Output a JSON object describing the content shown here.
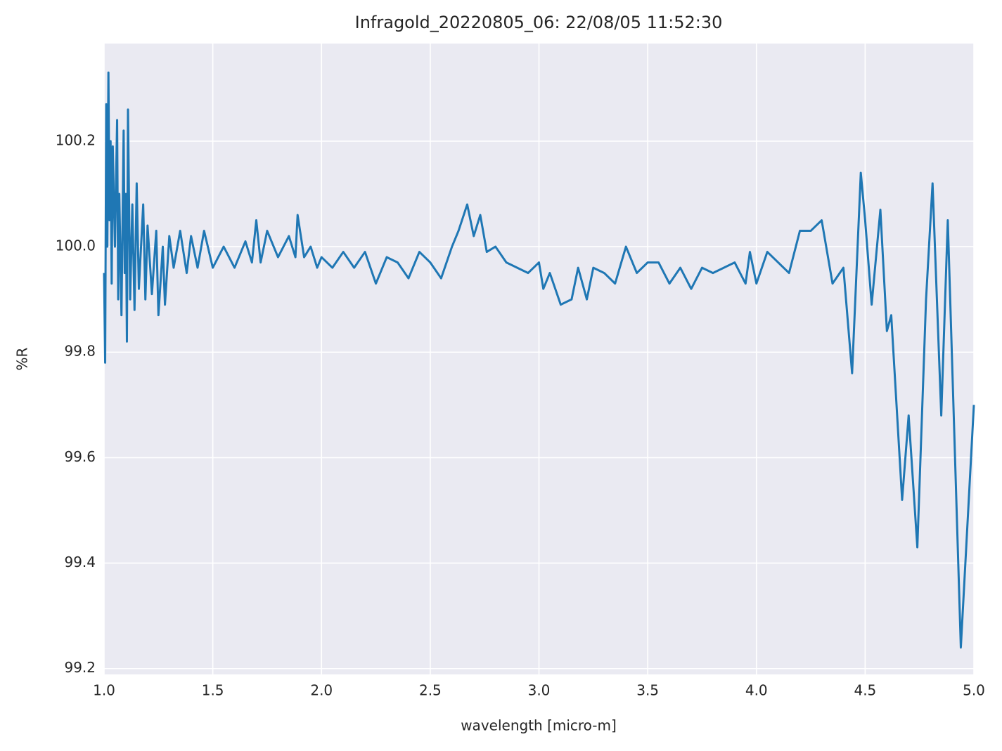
{
  "chart_data": {
    "type": "line",
    "title": "Infragold_20220805_06:  22/08/05 11:52:30",
    "x_label": "wavelength [micro-m]",
    "y_label": "%R",
    "xlim": [
      1.0,
      5.0
    ],
    "ylim": [
      99.189,
      100.385
    ],
    "xticks": [
      {
        "value": 1.0,
        "label": "1.0"
      },
      1.5,
      {
        "value": 2.0,
        "label": "2.0"
      },
      2.5,
      {
        "value": 3.0,
        "label": "3.0"
      },
      3.5,
      {
        "value": 4.0,
        "label": "4.0"
      },
      4.5,
      {
        "value": 5.0,
        "label": "5.0"
      }
    ],
    "yticks": [
      99.2,
      99.4,
      99.6,
      99.8,
      {
        "value": 100.0,
        "label": "100.0"
      },
      100.2
    ],
    "grid": true,
    "series": [
      {
        "color": "#1f77b4",
        "x": [
          1.0,
          1.005,
          1.01,
          1.015,
          1.02,
          1.025,
          1.03,
          1.035,
          1.04,
          1.05,
          1.06,
          1.065,
          1.07,
          1.08,
          1.09,
          1.095,
          1.1,
          1.105,
          1.11,
          1.12,
          1.13,
          1.14,
          1.15,
          1.16,
          1.18,
          1.19,
          1.2,
          1.22,
          1.24,
          1.25,
          1.27,
          1.28,
          1.3,
          1.32,
          1.35,
          1.38,
          1.4,
          1.43,
          1.46,
          1.5,
          1.55,
          1.6,
          1.65,
          1.68,
          1.7,
          1.72,
          1.75,
          1.8,
          1.85,
          1.88,
          1.89,
          1.92,
          1.95,
          1.98,
          2.0,
          2.05,
          2.1,
          2.15,
          2.2,
          2.25,
          2.3,
          2.35,
          2.4,
          2.45,
          2.5,
          2.55,
          2.6,
          2.63,
          2.67,
          2.7,
          2.73,
          2.76,
          2.8,
          2.85,
          2.9,
          2.95,
          3.0,
          3.02,
          3.05,
          3.1,
          3.15,
          3.18,
          3.22,
          3.25,
          3.3,
          3.35,
          3.4,
          3.45,
          3.5,
          3.55,
          3.6,
          3.65,
          3.7,
          3.75,
          3.8,
          3.85,
          3.9,
          3.95,
          3.97,
          4.0,
          4.05,
          4.1,
          4.15,
          4.2,
          4.25,
          4.3,
          4.35,
          4.4,
          4.44,
          4.48,
          4.5,
          4.53,
          4.57,
          4.6,
          4.62,
          4.67,
          4.7,
          4.74,
          4.78,
          4.81,
          4.85,
          4.88,
          4.94,
          5.0
        ],
        "values": [
          99.95,
          99.78,
          100.27,
          100.0,
          100.33,
          100.05,
          100.2,
          99.93,
          100.19,
          100.0,
          100.24,
          99.9,
          100.1,
          99.87,
          100.22,
          99.95,
          100.1,
          99.82,
          100.26,
          99.9,
          100.08,
          99.88,
          100.12,
          99.92,
          100.08,
          99.9,
          100.04,
          99.91,
          100.03,
          99.87,
          100.0,
          99.89,
          100.02,
          99.96,
          100.03,
          99.95,
          100.02,
          99.96,
          100.03,
          99.96,
          100.0,
          99.96,
          100.01,
          99.97,
          100.05,
          99.97,
          100.03,
          99.98,
          100.02,
          99.98,
          100.06,
          99.98,
          100.0,
          99.96,
          99.98,
          99.96,
          99.99,
          99.96,
          99.99,
          99.93,
          99.98,
          99.97,
          99.94,
          99.99,
          99.97,
          99.94,
          100.0,
          100.03,
          100.08,
          100.02,
          100.06,
          99.99,
          100.0,
          99.97,
          99.96,
          99.95,
          99.97,
          99.92,
          99.95,
          99.89,
          99.9,
          99.96,
          99.9,
          99.96,
          99.95,
          99.93,
          100.0,
          99.95,
          99.97,
          99.97,
          99.93,
          99.96,
          99.92,
          99.96,
          99.95,
          99.96,
          99.97,
          99.93,
          99.99,
          99.93,
          99.99,
          99.97,
          99.95,
          100.03,
          100.03,
          100.05,
          99.93,
          99.96,
          99.76,
          100.14,
          100.05,
          99.89,
          100.07,
          99.84,
          99.87,
          99.52,
          99.68,
          99.43,
          99.9,
          100.12,
          99.68,
          100.05,
          99.24,
          99.7
        ]
      }
    ]
  }
}
